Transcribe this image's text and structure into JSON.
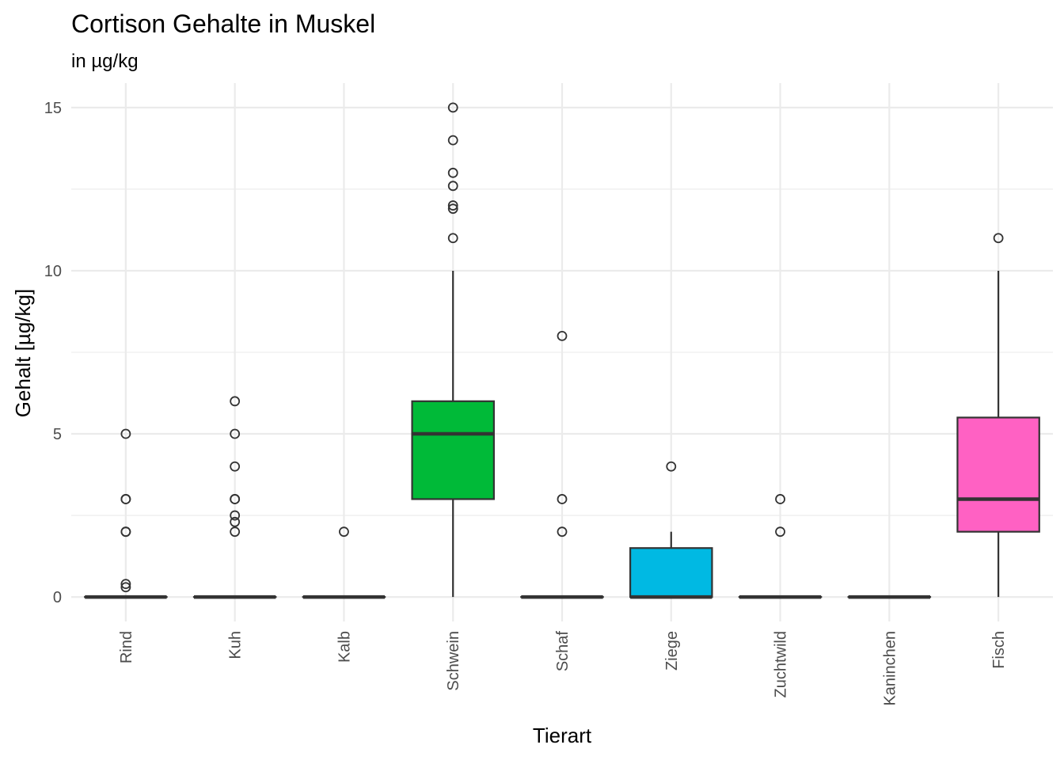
{
  "chart_data": {
    "type": "boxplot",
    "title": "Cortison Gehalte in Muskel",
    "subtitle": "in µg/kg",
    "xlabel": "Tierart",
    "ylabel": "Gehalt [µg/kg]",
    "ylim": [
      -0.75,
      15.75
    ],
    "y_ticks": [
      0,
      5,
      10,
      15
    ],
    "grid": true,
    "categories": [
      "Rind",
      "Kuh",
      "Kalb",
      "Schwein",
      "Schaf",
      "Ziege",
      "Zuchtwild",
      "Kaninchen",
      "Fisch"
    ],
    "boxes": [
      {
        "category": "Rind",
        "q1": 0,
        "median": 0,
        "q3": 0,
        "whisker_low": 0,
        "whisker_high": 0,
        "outliers": [
          5,
          3,
          3,
          2,
          2,
          0.4,
          0.3
        ],
        "fill": "#ffffff"
      },
      {
        "category": "Kuh",
        "q1": 0,
        "median": 0,
        "q3": 0,
        "whisker_low": 0,
        "whisker_high": 0,
        "outliers": [
          6,
          5,
          4,
          3,
          3,
          2.5,
          2.3,
          2
        ],
        "fill": "#ffffff"
      },
      {
        "category": "Kalb",
        "q1": 0,
        "median": 0,
        "q3": 0,
        "whisker_low": 0,
        "whisker_high": 0,
        "outliers": [
          2
        ],
        "fill": "#ffffff"
      },
      {
        "category": "Schwein",
        "q1": 3,
        "median": 5,
        "q3": 6,
        "whisker_low": 0,
        "whisker_high": 10,
        "outliers": [
          15,
          14,
          13,
          12.6,
          12,
          11.9,
          11
        ],
        "fill": "#00BA38"
      },
      {
        "category": "Schaf",
        "q1": 0,
        "median": 0,
        "q3": 0,
        "whisker_low": 0,
        "whisker_high": 0,
        "outliers": [
          8,
          3,
          2
        ],
        "fill": "#ffffff"
      },
      {
        "category": "Ziege",
        "q1": 0,
        "median": 0,
        "q3": 1.5,
        "whisker_low": 0,
        "whisker_high": 2,
        "outliers": [
          4
        ],
        "fill": "#00B9E3"
      },
      {
        "category": "Zuchtwild",
        "q1": 0,
        "median": 0,
        "q3": 0,
        "whisker_low": 0,
        "whisker_high": 0,
        "outliers": [
          3,
          2
        ],
        "fill": "#ffffff"
      },
      {
        "category": "Kaninchen",
        "q1": 0,
        "median": 0,
        "q3": 0,
        "whisker_low": 0,
        "whisker_high": 0,
        "outliers": [],
        "fill": "#ffffff"
      },
      {
        "category": "Fisch",
        "q1": 2,
        "median": 3,
        "q3": 5.5,
        "whisker_low": 0,
        "whisker_high": 10,
        "outliers": [
          11
        ],
        "fill": "#FF61C3"
      }
    ],
    "colors": {
      "grid": "#ebebeb",
      "line": "#333333",
      "tick_text": "#4d4d4d"
    }
  }
}
